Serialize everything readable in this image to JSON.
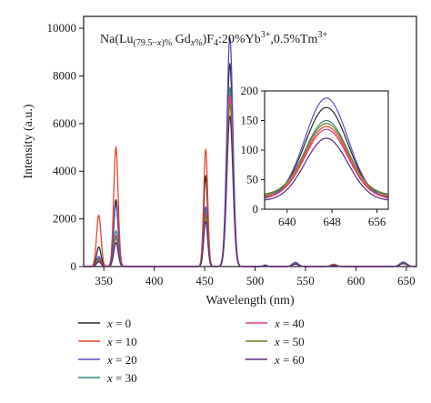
{
  "chart_data": [
    {
      "type": "line",
      "title_parts": {
        "prefix": "Na(Lu",
        "sub1": "(79.5−",
        "sub1_var": "x",
        "sub1_end": ")%",
        "gd": " Gd",
        "sub2_var": "x",
        "sub2_end": "%",
        "mid": ")F",
        "sub3": "4",
        "rest1": ":20%Yb",
        "sup1": "3+",
        "rest2": ",0.5%Tm",
        "sup2": "3+"
      },
      "xlabel": "Wavelength (nm)",
      "ylabel": "Intensity (a.u.)",
      "xlim": [
        330,
        660
      ],
      "ylim": [
        0,
        10500
      ],
      "xticks": [
        "350",
        "400",
        "450",
        "500",
        "550",
        "600",
        "650"
      ],
      "yticks": [
        "0",
        "2000",
        "4000",
        "6000",
        "8000",
        "10000"
      ],
      "peaks": [
        {
          "center": 345,
          "width": 2.2
        },
        {
          "center": 362,
          "width": 2.2
        },
        {
          "center": 451,
          "width": 2.0
        },
        {
          "center": 475,
          "width": 3.0
        },
        {
          "center": 510,
          "width": 2.0
        },
        {
          "center": 540,
          "width": 3.0
        },
        {
          "center": 578,
          "width": 3.0
        },
        {
          "center": 647,
          "width": 3.5
        }
      ],
      "series": [
        {
          "name": "x = 0",
          "color": "#2b2b2b",
          "peak_values": [
            820,
            2800,
            3800,
            8500,
            60,
            160,
            60,
            170
          ]
        },
        {
          "name": "x = 10",
          "color": "#e8452c",
          "peak_values": [
            2150,
            5000,
            4900,
            7000,
            60,
            130,
            100,
            140
          ]
        },
        {
          "name": "x = 20",
          "color": "#5b4cc4",
          "peak_values": [
            420,
            2600,
            2500,
            9600,
            60,
            180,
            60,
            190
          ]
        },
        {
          "name": "x = 30",
          "color": "#2e8b7a",
          "peak_values": [
            340,
            1500,
            2300,
            7500,
            50,
            130,
            50,
            150
          ]
        },
        {
          "name": "x = 40",
          "color": "#e0407a",
          "peak_values": [
            300,
            1300,
            2200,
            7200,
            50,
            120,
            50,
            135
          ]
        },
        {
          "name": "x = 50",
          "color": "#7a7a20",
          "peak_values": [
            260,
            1200,
            2100,
            6800,
            50,
            110,
            50,
            145
          ]
        },
        {
          "name": "x = 60",
          "color": "#5a2a7a",
          "peak_values": [
            200,
            1000,
            1900,
            6300,
            40,
            100,
            40,
            120
          ]
        }
      ]
    },
    {
      "type": "line",
      "xlim": [
        636,
        658
      ],
      "ylim": [
        0,
        200
      ],
      "xticks": [
        "640",
        "648",
        "656"
      ],
      "yticks": [
        "0",
        "50",
        "100",
        "150",
        "200"
      ],
      "series": [
        {
          "name": "x = 0",
          "color": "#2b2b2b",
          "peak_x": 647,
          "peak_y": 172,
          "edge_y": 18
        },
        {
          "name": "x = 10",
          "color": "#e8452c",
          "peak_x": 647,
          "peak_y": 140,
          "edge_y": 20
        },
        {
          "name": "x = 20",
          "color": "#5b4cc4",
          "peak_x": 647,
          "peak_y": 188,
          "edge_y": 16
        },
        {
          "name": "x = 30",
          "color": "#2e8b7a",
          "peak_x": 647,
          "peak_y": 150,
          "edge_y": 22
        },
        {
          "name": "x = 40",
          "color": "#e0407a",
          "peak_x": 647,
          "peak_y": 135,
          "edge_y": 18
        },
        {
          "name": "x = 50",
          "color": "#7a7a20",
          "peak_x": 647,
          "peak_y": 145,
          "edge_y": 24
        },
        {
          "name": "x = 60",
          "color": "#5a2a7a",
          "peak_x": 647,
          "peak_y": 120,
          "edge_y": 14
        }
      ]
    }
  ],
  "legend": [
    {
      "var": "x",
      "rest": " = 0",
      "color": "#2b2b2b"
    },
    {
      "var": "x",
      "rest": " = 10",
      "color": "#e8452c"
    },
    {
      "var": "x",
      "rest": " = 20",
      "color": "#5b4cc4"
    },
    {
      "var": "x",
      "rest": " = 30",
      "color": "#2e8b7a"
    },
    {
      "var": "x",
      "rest": " = 40",
      "color": "#e0407a"
    },
    {
      "var": "x",
      "rest": " = 50",
      "color": "#7a7a20"
    },
    {
      "var": "x",
      "rest": " = 60",
      "color": "#5a2a7a"
    }
  ]
}
